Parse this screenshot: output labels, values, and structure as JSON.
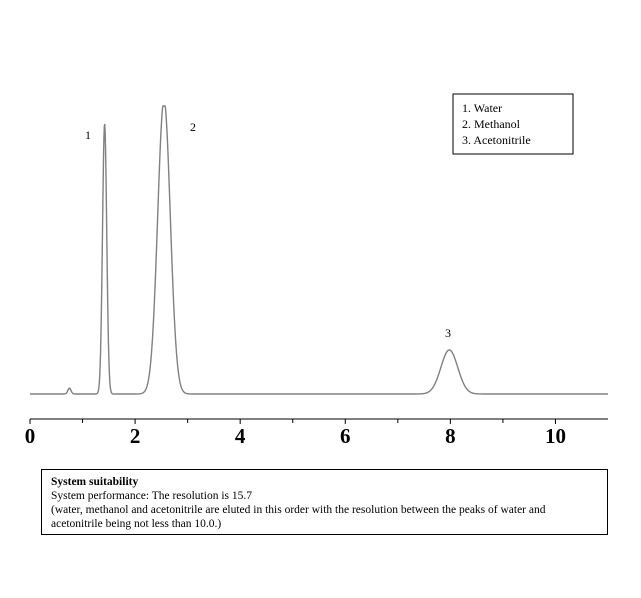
{
  "chart_data": {
    "type": "line",
    "title": "",
    "xlabel": "",
    "ylabel": "",
    "xlim": [
      0,
      11
    ],
    "ylim": [
      0,
      1
    ],
    "x_ticks": [
      0,
      2,
      4,
      6,
      8,
      10
    ],
    "x_minor_ticks": [
      1,
      3,
      5,
      7,
      9
    ],
    "grid": false,
    "baseline": 0.02,
    "peaks": [
      {
        "label": "1",
        "compound": "Water",
        "retention_time": 1.42,
        "height": 0.92,
        "width": 0.04
      },
      {
        "label": "2",
        "compound": "Methanol",
        "retention_time": 2.55,
        "height": 1.0,
        "width": 0.12,
        "offscale": true
      },
      {
        "label": "3",
        "compound": "Acetonitrile",
        "retention_time": 7.98,
        "height": 0.15,
        "width": 0.16
      }
    ],
    "minor_peaks": [
      {
        "retention_time": 0.75,
        "height": 0.02,
        "width": 0.03
      }
    ],
    "legend": {
      "placement": "top-right",
      "entries": [
        "1. Water",
        "2. Methanol",
        "3. Acetonitrile"
      ]
    }
  },
  "note": {
    "title": "System suitability",
    "line1": "System performance: The resolution is 15.7",
    "line2": "(water, methanol and acetonitrile are eluted in this order with the resolution between the peaks of water and acetonitrile being not less than 10.0.)"
  }
}
